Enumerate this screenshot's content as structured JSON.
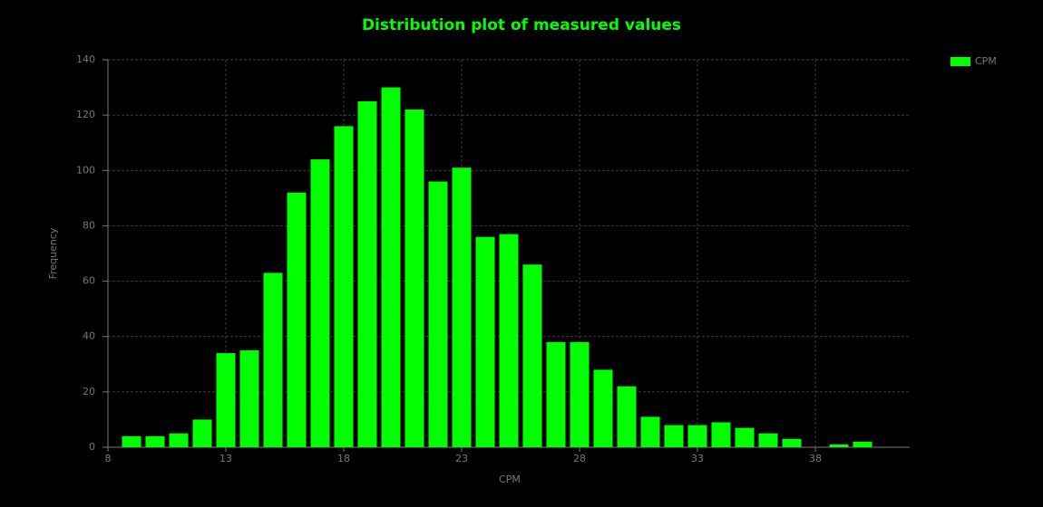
{
  "chart_data": {
    "type": "histogram",
    "title": "Distribution plot of measured values",
    "x_label": "CPM",
    "y_label": "Frequency",
    "bins": [
      8.5,
      9.5,
      10.5,
      11.5,
      12.5,
      13.5,
      14.5,
      15.5,
      16.5,
      17.5,
      18.5,
      19.5,
      20.5,
      21.5,
      22.5,
      23.5,
      24.5,
      25.5,
      26.5,
      27.5,
      28.5,
      29.5,
      30.5,
      31.5,
      32.5,
      33.5,
      34.5,
      35.5,
      36.5,
      37.5,
      38.5,
      39.5,
      40.5
    ],
    "series": [
      {
        "name": "CPM",
        "color": "#00ff00",
        "values": [
          4,
          4,
          5,
          10,
          34,
          35,
          63,
          92,
          104,
          116,
          125,
          130,
          122,
          96,
          101,
          76,
          77,
          66,
          38,
          38,
          28,
          22,
          11,
          8,
          8,
          9,
          7,
          5,
          3,
          0,
          1,
          2
        ]
      }
    ],
    "xlim": [
      8,
      42
    ],
    "xticks": [
      8,
      13,
      18,
      23,
      28,
      33,
      38
    ],
    "ylim": [
      0,
      140
    ],
    "yticks": [
      0,
      20,
      40,
      60,
      80,
      100,
      120,
      140
    ],
    "grid": true,
    "legend": "top-right"
  }
}
